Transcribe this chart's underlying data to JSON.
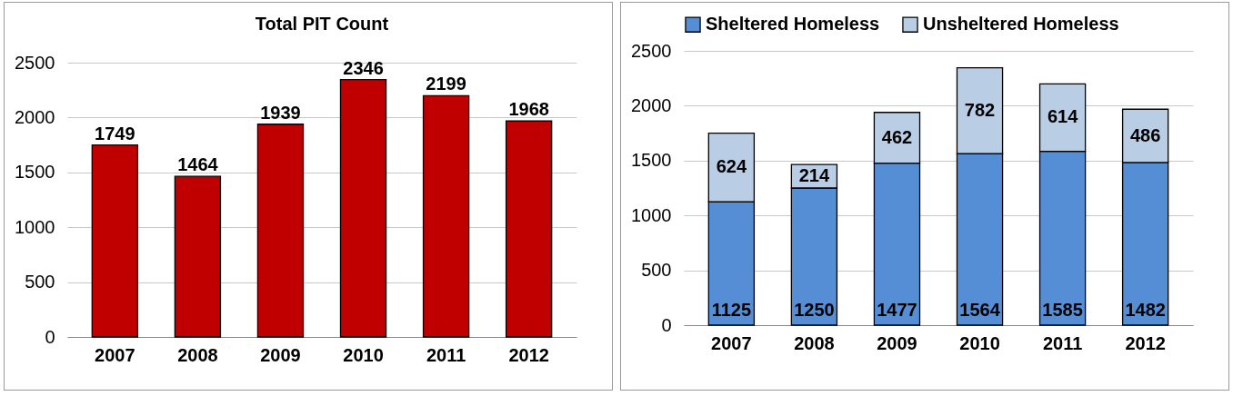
{
  "chart_data": [
    {
      "type": "bar",
      "title": "Total PIT Count",
      "categories": [
        "2007",
        "2008",
        "2009",
        "2010",
        "2011",
        "2012"
      ],
      "series": [
        {
          "color": "#c00000",
          "values": [
            1749,
            1464,
            1939,
            2346,
            2199,
            1968
          ]
        }
      ],
      "ylim": [
        0,
        2500
      ],
      "yticks": [
        0,
        500,
        1000,
        1500,
        2000,
        2500
      ],
      "grid": "y",
      "data_labels": true,
      "legend": false
    },
    {
      "type": "bar",
      "stacked": true,
      "categories": [
        "2007",
        "2008",
        "2009",
        "2010",
        "2011",
        "2012"
      ],
      "series": [
        {
          "name": "Sheltered Homeless",
          "color": "#558ed5",
          "values": [
            1125,
            1250,
            1477,
            1564,
            1585,
            1482
          ]
        },
        {
          "name": "Unsheltered Homeless",
          "color": "#b9cde5",
          "values": [
            624,
            214,
            462,
            782,
            614,
            486
          ]
        }
      ],
      "ylim": [
        0,
        2500
      ],
      "yticks": [
        0,
        500,
        1000,
        1500,
        2000,
        2500
      ],
      "grid": "y",
      "data_labels": true,
      "legend": "top"
    }
  ]
}
